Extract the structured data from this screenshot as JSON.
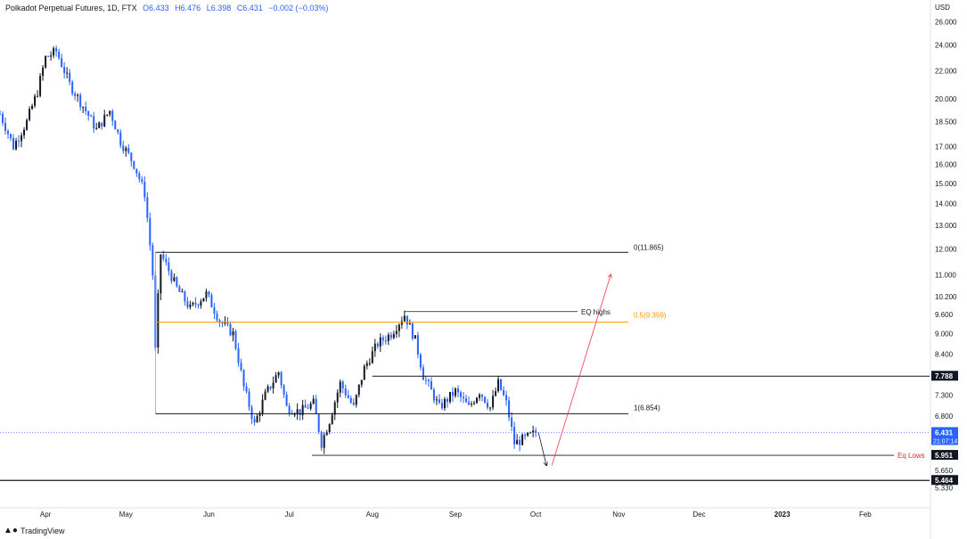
{
  "header": {
    "symbol": "Polkadot Perpetual Futures, 1D, FTX",
    "open": "O6.433",
    "high": "H6.476",
    "low": "L6.398",
    "close": "C6.431",
    "change": "−0.002 (−0.03%)"
  },
  "currency": "USD",
  "brand": "TradingView",
  "colors": {
    "bull": "#131722",
    "bear": "#2962ff",
    "fib_mid": "#ff9800",
    "eq_lows": "#d32f2f",
    "projection": "#f23645",
    "price_tag": "#2962ff"
  },
  "chart_data": {
    "type": "candlestick",
    "y_axis": {
      "scale": "log",
      "range": [
        5.1,
        26.5
      ],
      "ticks": [
        "26.000",
        "24.000",
        "22.000",
        "20.000",
        "18.500",
        "17.000",
        "16.000",
        "15.000",
        "14.000",
        "13.000",
        "12.000",
        "11.000",
        "10.200",
        "9.600",
        "9.000",
        "8.400",
        "7.800",
        "7.300",
        "6.800",
        "6.431",
        "5.951",
        "5.650",
        "5.464",
        "5.330"
      ]
    },
    "x_axis": {
      "ticks": [
        "Apr",
        "May",
        "Jun",
        "Jul",
        "Aug",
        "Sep",
        "Oct",
        "Nov",
        "Dec",
        "2023",
        "Feb"
      ]
    },
    "current_price": {
      "value": 6.431,
      "label": "6.431",
      "countdown": "21:07:14"
    },
    "price_path": [
      [
        "2022-03-15",
        19.0
      ],
      [
        "2022-03-20",
        17.0
      ],
      [
        "2022-03-25",
        18.5
      ],
      [
        "2022-03-29",
        20.5
      ],
      [
        "2022-04-01",
        23.0
      ],
      [
        "2022-04-05",
        23.5
      ],
      [
        "2022-04-10",
        21.0
      ],
      [
        "2022-04-15",
        19.5
      ],
      [
        "2022-04-20",
        18.0
      ],
      [
        "2022-04-25",
        19.2
      ],
      [
        "2022-04-29",
        17.3
      ],
      [
        "2022-05-04",
        16.0
      ],
      [
        "2022-05-08",
        14.5
      ],
      [
        "2022-05-11",
        11.0
      ],
      [
        "2022-05-12",
        8.5
      ],
      [
        "2022-05-14",
        11.8
      ],
      [
        "2022-05-20",
        10.5
      ],
      [
        "2022-05-25",
        9.8
      ],
      [
        "2022-05-31",
        10.3
      ],
      [
        "2022-06-05",
        9.4
      ],
      [
        "2022-06-10",
        9.0
      ],
      [
        "2022-06-14",
        7.5
      ],
      [
        "2022-06-18",
        6.6
      ],
      [
        "2022-06-22",
        7.3
      ],
      [
        "2022-06-27",
        7.9
      ],
      [
        "2022-06-30",
        7.0
      ],
      [
        "2022-07-05",
        6.9
      ],
      [
        "2022-07-10",
        7.1
      ],
      [
        "2022-07-13",
        6.2
      ],
      [
        "2022-07-16",
        6.7
      ],
      [
        "2022-07-20",
        7.6
      ],
      [
        "2022-07-25",
        7.0
      ],
      [
        "2022-07-29",
        8.0
      ],
      [
        "2022-08-03",
        8.7
      ],
      [
        "2022-08-08",
        9.0
      ],
      [
        "2022-08-13",
        9.6
      ],
      [
        "2022-08-17",
        8.8
      ],
      [
        "2022-08-20",
        7.8
      ],
      [
        "2022-08-26",
        7.0
      ],
      [
        "2022-09-01",
        7.4
      ],
      [
        "2022-09-06",
        7.0
      ],
      [
        "2022-09-10",
        7.4
      ],
      [
        "2022-09-14",
        7.0
      ],
      [
        "2022-09-17",
        7.6
      ],
      [
        "2022-09-20",
        7.1
      ],
      [
        "2022-09-23",
        6.2
      ],
      [
        "2022-09-27",
        6.3
      ],
      [
        "2022-10-01",
        6.43
      ]
    ],
    "annotations": [
      {
        "type": "fib_level",
        "label": "0(11.865)",
        "value": 11.865
      },
      {
        "type": "fib_level",
        "label": "0.5(9.359)",
        "value": 9.359
      },
      {
        "type": "fib_level",
        "label": "1(6.854)",
        "value": 6.854
      },
      {
        "type": "level",
        "label": "EQ highs",
        "value": 9.7
      },
      {
        "type": "level",
        "label": "7.788",
        "value": 7.788
      },
      {
        "type": "level",
        "label": "Eq Lows",
        "value": 5.951
      },
      {
        "type": "level",
        "label": "5.464",
        "value": 5.464
      },
      {
        "type": "arrow",
        "label": "",
        "from": [
          "2022-10-02",
          6.43
        ],
        "to": [
          "2022-10-05",
          5.75
        ]
      },
      {
        "type": "arrow",
        "label": "",
        "from": [
          "2022-10-07",
          5.75
        ],
        "to": [
          "2022-10-29",
          11.0
        ]
      }
    ],
    "grid": false,
    "legend": "none"
  }
}
